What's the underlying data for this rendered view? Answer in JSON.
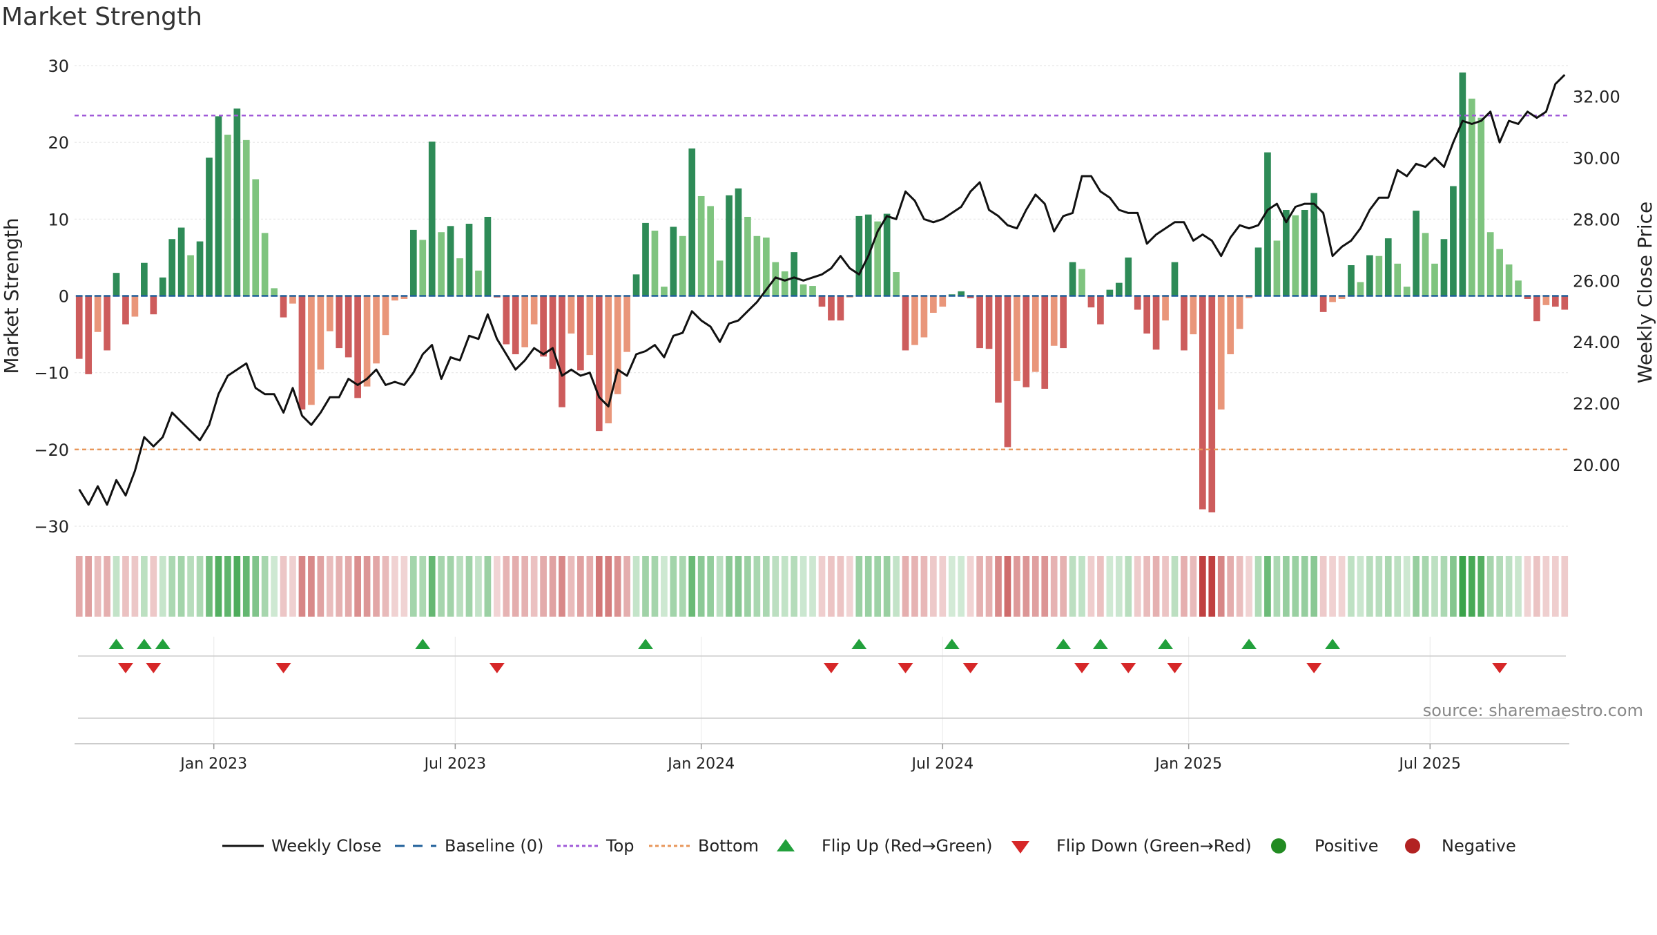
{
  "chart_data": {
    "type": "bar",
    "title": "Market Strength",
    "ylabel": "Market Strength",
    "y2label": "Weekly Close Price",
    "ylim": [
      -30,
      30
    ],
    "y2lim": [
      18.0,
      33.0
    ],
    "yticks": [
      -30,
      -20,
      -10,
      0,
      10,
      20,
      30
    ],
    "yticklabels": [
      "−30",
      "−20",
      "−10",
      "0",
      "10",
      "20",
      "30"
    ],
    "y2ticks": [
      20,
      22,
      24,
      26,
      28,
      30,
      32
    ],
    "y2ticklabels": [
      "20.00",
      "22.00",
      "24.00",
      "26.00",
      "28.00",
      "30.00",
      "32.00"
    ],
    "xlabels": [
      {
        "label": "Jan 2023",
        "week": 15
      },
      {
        "label": "Jul 2023",
        "week": 41
      },
      {
        "label": "Jan 2024",
        "week": 67.5
      },
      {
        "label": "Jul 2024",
        "week": 93.5
      },
      {
        "label": "Jan 2025",
        "week": 120
      },
      {
        "label": "Jul 2025",
        "week": 146
      }
    ],
    "top_level": 23.5,
    "bottom_level": -20,
    "baseline": 0,
    "strength": [
      -8.2,
      -10.2,
      -4.7,
      -7.1,
      3,
      -3.7,
      -2.7,
      4.3,
      -2.4,
      2.4,
      7.4,
      8.9,
      5.3,
      7.1,
      18,
      23.4,
      21,
      24.4,
      20.3,
      15.2,
      8.2,
      1,
      -2.8,
      -1,
      -14.8,
      -14.2,
      -9.6,
      -4.6,
      -6.8,
      -8,
      -13.3,
      -11.8,
      -8.8,
      -5.1,
      -0.6,
      -0.4,
      8.6,
      7.3,
      20.1,
      8.3,
      9.1,
      4.9,
      9.4,
      3.3,
      10.3,
      -0.2,
      -6.3,
      -7.6,
      -6.7,
      -3.7,
      -7.9,
      -9.5,
      -14.5,
      -4.9,
      -9.7,
      -7.7,
      -17.6,
      -16.6,
      -12.8,
      -7.3,
      2.8,
      9.5,
      8.5,
      1.2,
      9,
      7.8,
      19.2,
      13,
      11.7,
      4.6,
      13.1,
      14,
      10.3,
      7.8,
      7.6,
      4.4,
      3.2,
      5.7,
      1.5,
      1.3,
      -1.4,
      -3.2,
      -3.2,
      -0.2,
      10.4,
      10.6,
      9.7,
      10.7,
      3.1,
      -7.1,
      -6.4,
      -5.4,
      -2.2,
      -1.4,
      0.2,
      0.6,
      -0.3,
      -6.8,
      -6.9,
      -13.9,
      -19.7,
      -11.1,
      -11.9,
      -9.9,
      -12.1,
      -6.5,
      -6.8,
      4.4,
      3.5,
      -1.5,
      -3.7,
      0.8,
      1.7,
      5,
      -1.8,
      -4.9,
      -7,
      -3.2,
      4.4,
      -7.1,
      -5,
      -27.8,
      -28.2,
      -14.8,
      -7.6,
      -4.3,
      -0.3,
      6.3,
      18.7,
      7.2,
      11.2,
      10.5,
      11.2,
      13.4,
      -2.1,
      -0.8,
      -0.4,
      4,
      1.8,
      5.3,
      5.2,
      7.5,
      4.2,
      1.2,
      11.1,
      8.2,
      4.2,
      7.4,
      14.3,
      29.1,
      25.7,
      23.2,
      8.3,
      6.1,
      4.1,
      2,
      -0.4,
      -3.3,
      -1.2,
      -1.4,
      -1.8
    ],
    "weekly_close": [
      19.2,
      18.7,
      19.3,
      18.7,
      19.5,
      19,
      19.8,
      20.9,
      20.6,
      20.9,
      21.7,
      21.4,
      21.1,
      20.8,
      21.3,
      22.3,
      22.9,
      23.1,
      23.3,
      22.5,
      22.3,
      22.3,
      21.7,
      22.5,
      21.6,
      21.3,
      21.7,
      22.2,
      22.2,
      22.8,
      22.6,
      22.8,
      23.1,
      22.6,
      22.7,
      22.6,
      23,
      23.6,
      23.9,
      22.8,
      23.5,
      23.4,
      24.2,
      24.1,
      24.9,
      24.1,
      23.6,
      23.1,
      23.4,
      23.8,
      23.6,
      23.8,
      22.9,
      23.1,
      22.9,
      23,
      22.2,
      21.9,
      23.1,
      22.9,
      23.6,
      23.7,
      23.9,
      23.5,
      24.2,
      24.3,
      25,
      24.7,
      24.5,
      24,
      24.6,
      24.7,
      25,
      25.3,
      25.7,
      26.1,
      26,
      26.1,
      26,
      26.1,
      26.2,
      26.4,
      26.8,
      26.4,
      26.2,
      26.8,
      27.6,
      28.1,
      28,
      28.9,
      28.6,
      28,
      27.9,
      28,
      28.2,
      28.4,
      28.9,
      29.2,
      28.3,
      28.1,
      27.8,
      27.7,
      28.3,
      28.8,
      28.5,
      27.6,
      28.1,
      28.2,
      29.4,
      29.4,
      28.9,
      28.7,
      28.3,
      28.2,
      28.2,
      27.2,
      27.5,
      27.7,
      27.9,
      27.9,
      27.3,
      27.5,
      27.3,
      26.8,
      27.4,
      27.8,
      27.7,
      27.8,
      28.3,
      28.5,
      27.9,
      28.4,
      28.5,
      28.5,
      28.2,
      26.8,
      27.1,
      27.3,
      27.7,
      28.3,
      28.7,
      28.7,
      29.6,
      29.4,
      29.8,
      29.7,
      30,
      29.7,
      30.5,
      31.2,
      31.1,
      31.2,
      31.5,
      30.5,
      31.2,
      31.1,
      31.5,
      31.3,
      31.5,
      32.4,
      32.7
    ],
    "flip_up_weeks": [
      4,
      7,
      9,
      37,
      61,
      84,
      94,
      106,
      110,
      117,
      126,
      135
    ],
    "flip_down_weeks": [
      5,
      8,
      22,
      45,
      81,
      89,
      96,
      108,
      113,
      118,
      133,
      153
    ],
    "legend": [
      {
        "key": "close",
        "label": "Weekly Close"
      },
      {
        "key": "baseline",
        "label": "Baseline (0)"
      },
      {
        "key": "top",
        "label": "Top"
      },
      {
        "key": "bottom",
        "label": "Bottom"
      },
      {
        "key": "flipup",
        "label": "Flip Up (Red→Green)"
      },
      {
        "key": "flipdown",
        "label": "Flip Down (Green→Red)"
      },
      {
        "key": "positive",
        "label": "Positive"
      },
      {
        "key": "negative",
        "label": "Negative"
      }
    ]
  },
  "source": "source: sharemaestro.com",
  "colors": {
    "pos_strong": "#2e8b57",
    "pos_light": "#7fc47f",
    "neg_strong": "#cd5c5c",
    "neg_light": "#e9967a",
    "close_line": "#111111",
    "baseline": "#1f5f9a",
    "top": "#a05ad8",
    "bottom": "#e8965a",
    "flip_up": "#22a03c",
    "flip_down": "#d62728",
    "positive_dot": "#228b22",
    "negative_dot": "#b22222"
  }
}
